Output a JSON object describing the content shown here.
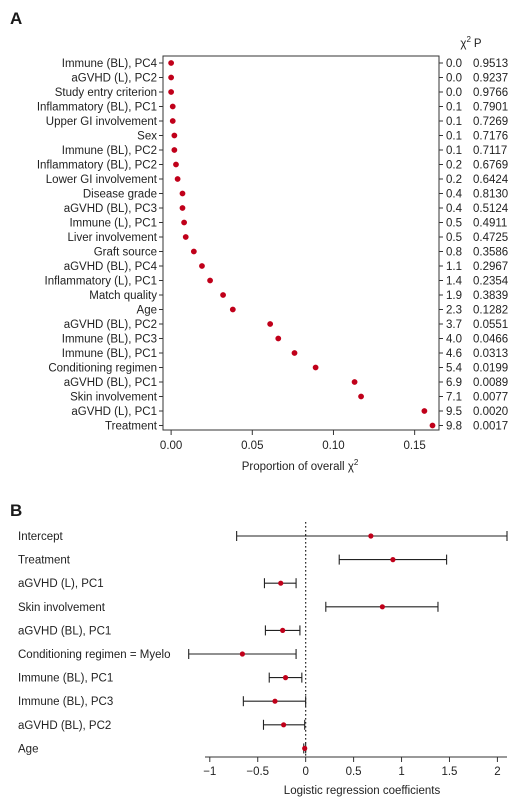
{
  "chart_data": [
    {
      "panel": "A",
      "type": "scatter",
      "xlabel_main": "Proportion of overall ",
      "xlabel_symbol": "χ",
      "xlabel_sup": "2",
      "right_header_symbol": "χ",
      "right_header_sup": "2",
      "right_header_p": "P",
      "xlim": [
        -0.005,
        0.165
      ],
      "xticks": [
        "0.00",
        "0.05",
        "0.10",
        "0.15"
      ],
      "xtick_values": [
        0.0,
        0.05,
        0.1,
        0.15
      ],
      "color": "#c0001a",
      "rows": [
        {
          "label": "Immune (BL), PC4",
          "value": 0.0,
          "chi2": "0.0",
          "p": "0.9513"
        },
        {
          "label": "aGVHD (L), PC2",
          "value": 0.0,
          "chi2": "0.0",
          "p": "0.9237"
        },
        {
          "label": "Study entry criterion",
          "value": 0.0,
          "chi2": "0.0",
          "p": "0.9766"
        },
        {
          "label": "Inflammatory (BL), PC1",
          "value": 0.001,
          "chi2": "0.1",
          "p": "0.7901"
        },
        {
          "label": "Upper GI involvement",
          "value": 0.001,
          "chi2": "0.1",
          "p": "0.7269"
        },
        {
          "label": "Sex",
          "value": 0.002,
          "chi2": "0.1",
          "p": "0.7176"
        },
        {
          "label": "Immune (BL), PC2",
          "value": 0.002,
          "chi2": "0.1",
          "p": "0.7117"
        },
        {
          "label": "Inflammatory (BL), PC2",
          "value": 0.003,
          "chi2": "0.2",
          "p": "0.6769"
        },
        {
          "label": "Lower GI involvement",
          "value": 0.004,
          "chi2": "0.2",
          "p": "0.6424"
        },
        {
          "label": "Disease grade",
          "value": 0.007,
          "chi2": "0.4",
          "p": "0.8130"
        },
        {
          "label": "aGVHD (BL), PC3",
          "value": 0.007,
          "chi2": "0.4",
          "p": "0.5124"
        },
        {
          "label": "Immune (L), PC1",
          "value": 0.008,
          "chi2": "0.5",
          "p": "0.4911"
        },
        {
          "label": "Liver involvement",
          "value": 0.009,
          "chi2": "0.5",
          "p": "0.4725"
        },
        {
          "label": "Graft source",
          "value": 0.014,
          "chi2": "0.8",
          "p": "0.3586"
        },
        {
          "label": "aGVHD (BL), PC4",
          "value": 0.019,
          "chi2": "1.1",
          "p": "0.2967"
        },
        {
          "label": "Inflammatory (L), PC1",
          "value": 0.024,
          "chi2": "1.4",
          "p": "0.2354"
        },
        {
          "label": "Match quality",
          "value": 0.032,
          "chi2": "1.9",
          "p": "0.3839"
        },
        {
          "label": "Age",
          "value": 0.038,
          "chi2": "2.3",
          "p": "0.1282"
        },
        {
          "label": "aGVHD (BL), PC2",
          "value": 0.061,
          "chi2": "3.7",
          "p": "0.0551"
        },
        {
          "label": "Immune (BL), PC3",
          "value": 0.066,
          "chi2": "4.0",
          "p": "0.0466"
        },
        {
          "label": "Immune (BL), PC1",
          "value": 0.076,
          "chi2": "4.6",
          "p": "0.0313"
        },
        {
          "label": "Conditioning regimen",
          "value": 0.089,
          "chi2": "5.4",
          "p": "0.0199"
        },
        {
          "label": "aGVHD (BL), PC1",
          "value": 0.113,
          "chi2": "6.9",
          "p": "0.0089"
        },
        {
          "label": "Skin involvement",
          "value": 0.117,
          "chi2": "7.1",
          "p": "0.0077"
        },
        {
          "label": "aGVHD (L), PC1",
          "value": 0.156,
          "chi2": "9.5",
          "p": "0.0020"
        },
        {
          "label": "Treatment",
          "value": 0.161,
          "chi2": "9.8",
          "p": "0.0017"
        }
      ]
    },
    {
      "panel": "B",
      "type": "forest",
      "xlabel": "Logistic regression coefficients",
      "xlim": [
        -1.05,
        2.1
      ],
      "xticks": [
        "−1",
        "−0.5",
        "0",
        "0.5",
        "1",
        "1.5",
        "2"
      ],
      "xtick_values": [
        -1,
        -0.5,
        0,
        0.5,
        1,
        1.5,
        2
      ],
      "reference_line": 0,
      "color": "#c0001a",
      "rows": [
        {
          "label": "Intercept",
          "estimate": 0.68,
          "low": -0.72,
          "high": 2.1
        },
        {
          "label": "Treatment",
          "estimate": 0.91,
          "low": 0.35,
          "high": 1.47
        },
        {
          "label": "aGVHD (L), PC1",
          "estimate": -0.26,
          "low": -0.43,
          "high": -0.1
        },
        {
          "label": "Skin involvement",
          "estimate": 0.8,
          "low": 0.21,
          "high": 1.38
        },
        {
          "label": "aGVHD (BL), PC1",
          "estimate": -0.24,
          "low": -0.42,
          "high": -0.06
        },
        {
          "label": "Conditioning regimen = Myelo",
          "estimate": -0.66,
          "low": -1.22,
          "high": -0.1
        },
        {
          "label": "Immune (BL), PC1",
          "estimate": -0.21,
          "low": -0.38,
          "high": -0.04
        },
        {
          "label": "Immune (BL), PC3",
          "estimate": -0.32,
          "low": -0.65,
          "high": 0.0
        },
        {
          "label": "aGVHD (BL), PC2",
          "estimate": -0.23,
          "low": -0.44,
          "high": -0.01
        },
        {
          "label": "Age",
          "estimate": -0.01,
          "low": -0.02,
          "high": 0.0
        }
      ]
    }
  ]
}
